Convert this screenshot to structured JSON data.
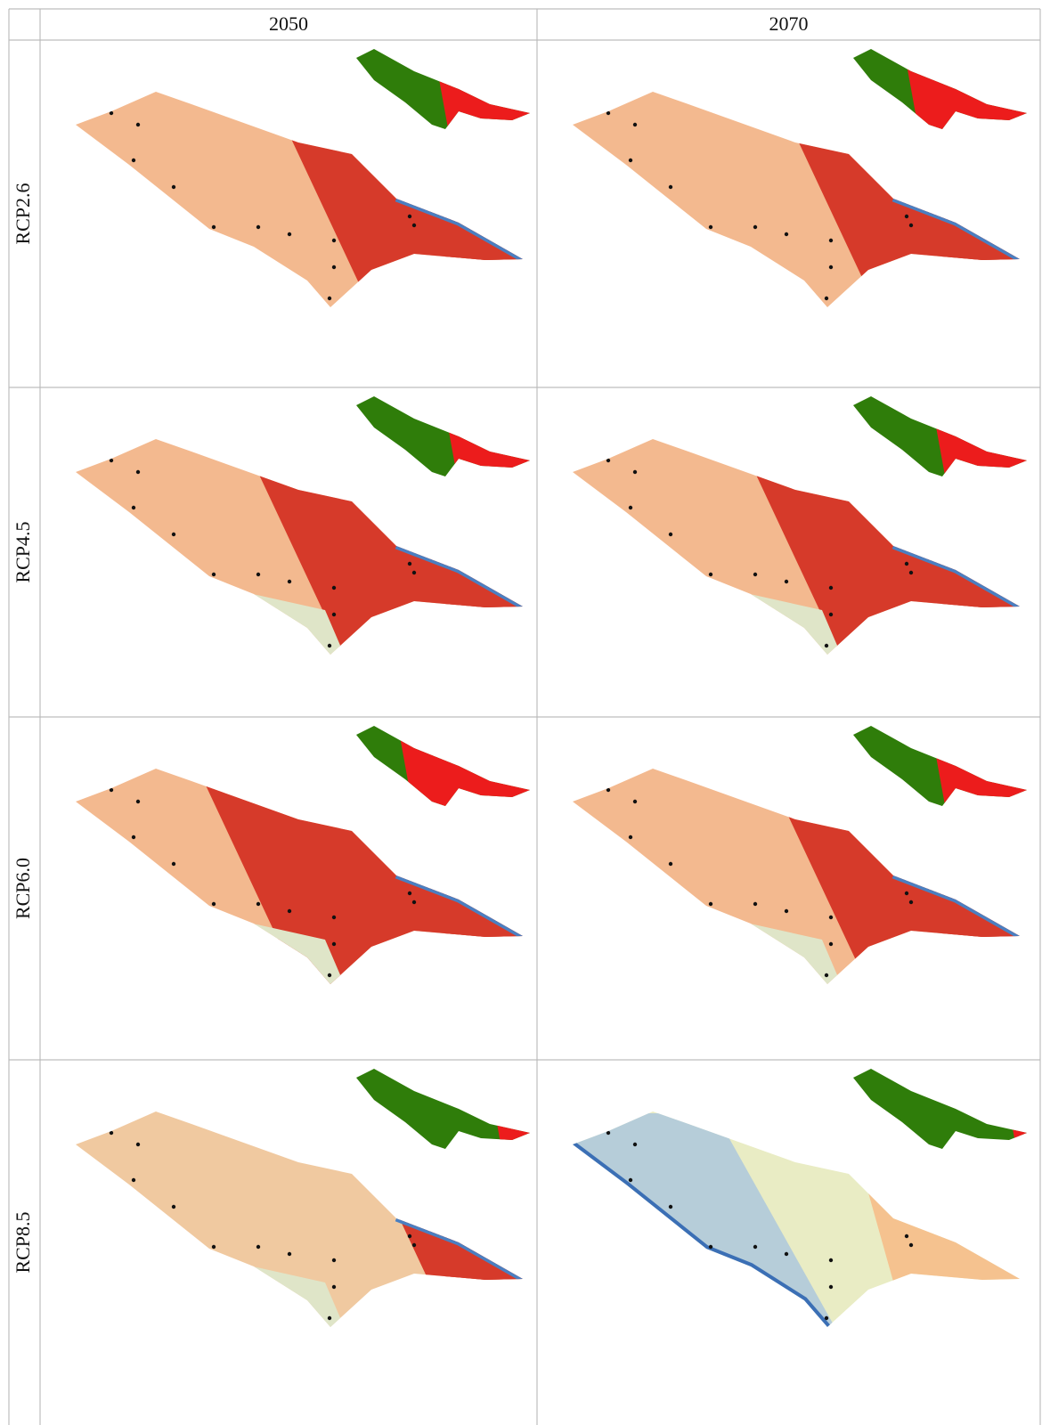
{
  "table": {
    "columns": [
      "2050",
      "2070"
    ],
    "rows": [
      "RCP2.6",
      "RCP4.5",
      "RCP6.0",
      "RCP8.5"
    ]
  }
}
